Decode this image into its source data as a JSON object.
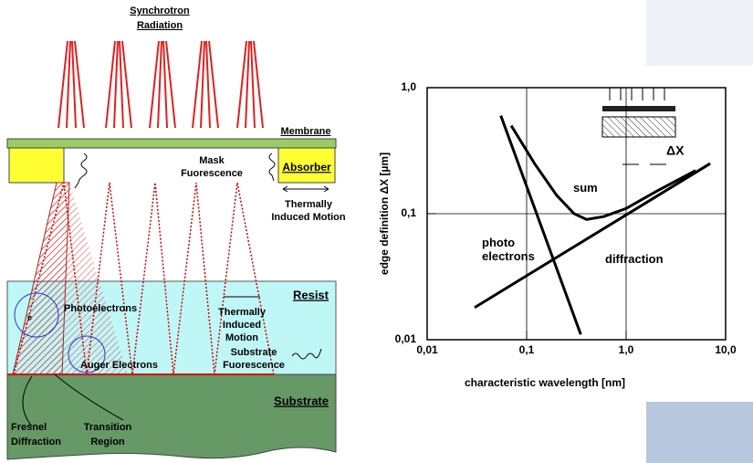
{
  "diagram": {
    "synchrotron_label": [
      "Synchrotron",
      "Radiation"
    ],
    "membrane": "Membrane",
    "mask_fluorescence": [
      "Mask",
      "Fuorescence"
    ],
    "absorber": "Absorber",
    "thermal_motion_top": [
      "Thermally",
      "Induced Motion"
    ],
    "resist": "Resist",
    "photoelectrons": "Photoelectrons",
    "electron": "e",
    "thermal_motion_resist": [
      "Thermally",
      "Induced",
      "Motion"
    ],
    "substrate_fluorescence": [
      "Substrate",
      "Fuorescence"
    ],
    "auger": "Auger Electrons",
    "substrate": "Substrate",
    "fresnel": [
      "Fresnel",
      "Diffraction"
    ],
    "transition": [
      "Transition",
      "Region"
    ]
  },
  "chart_data": {
    "type": "line",
    "xlabel": "characteristic wavelength [nm]",
    "ylabel": "edge definition ΔX [µm]",
    "inset_label": "ΔX",
    "xscale": "log",
    "yscale": "log",
    "xlim": [
      0.01,
      10
    ],
    "ylim": [
      0.01,
      1
    ],
    "xticks": [
      {
        "value": 0.01,
        "label": "0,01"
      },
      {
        "value": 0.1,
        "label": "0,1"
      },
      {
        "value": 1,
        "label": "1,0"
      },
      {
        "value": 10,
        "label": "10,0"
      }
    ],
    "yticks": [
      {
        "value": 0.01,
        "label": "0,01"
      },
      {
        "value": 0.1,
        "label": "0,1"
      },
      {
        "value": 1,
        "label": "1,0"
      }
    ],
    "grid": true,
    "series": [
      {
        "name": "photo electrons",
        "color": "#000000",
        "x": [
          0.055,
          0.35
        ],
        "values": [
          0.6,
          0.011
        ]
      },
      {
        "name": "diffraction",
        "color": "#000000",
        "x": [
          0.03,
          7
        ],
        "values": [
          0.018,
          0.25
        ]
      },
      {
        "name": "sum",
        "color": "#000000",
        "x": [
          0.07,
          0.12,
          0.2,
          0.3,
          0.4,
          0.6,
          1,
          2,
          5
        ],
        "values": [
          0.5,
          0.25,
          0.14,
          0.1,
          0.09,
          0.095,
          0.11,
          0.15,
          0.22
        ]
      }
    ]
  }
}
